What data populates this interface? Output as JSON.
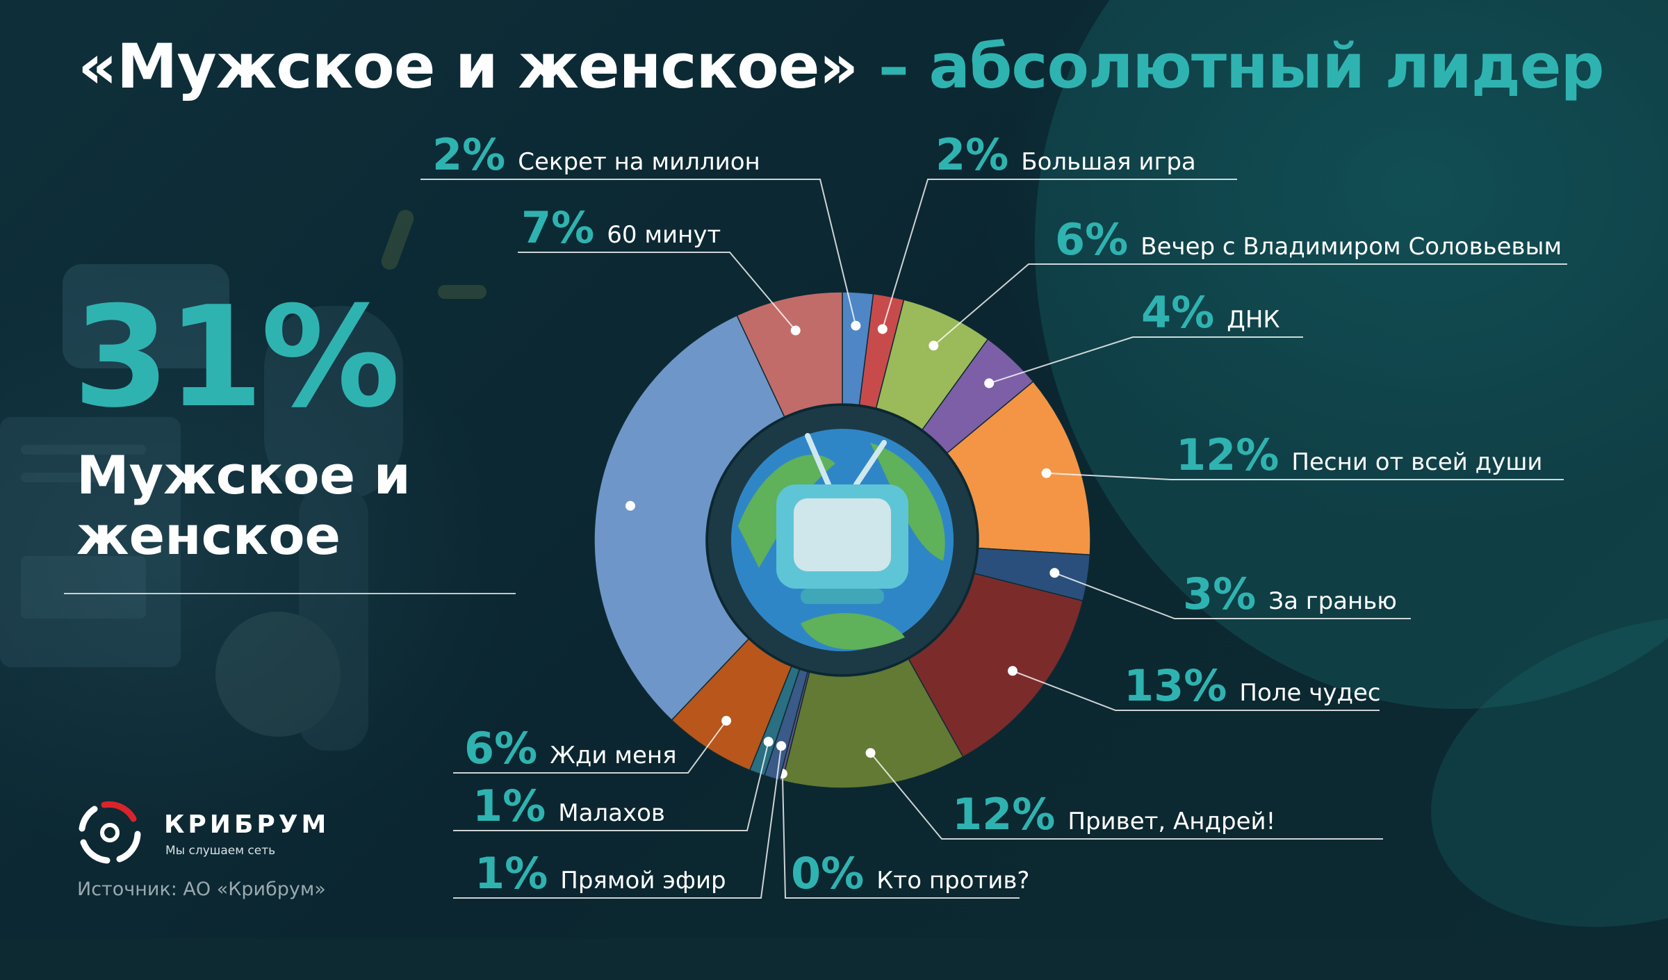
{
  "title": {
    "main": "«Мужское и женское»",
    "accent": " – абсолютный лидер"
  },
  "leader": {
    "percent": "31%",
    "name": "Мужское и женское"
  },
  "brand": {
    "name": "КРИБРУМ",
    "slogan": "Мы слушаем сеть"
  },
  "source": "Источник: АО «Крибрум»",
  "colors": {
    "accent": "#2fb3b0",
    "background": "#0d2a33"
  },
  "icons": {
    "center": "globe-tv-icon",
    "logo": "kribrum-logo-icon"
  },
  "chart_data": {
    "type": "pie",
    "donut": true,
    "start": "top, clockwise",
    "legend": "none",
    "unit": "%",
    "categories": [
      "Секрет на миллион",
      "Большая игра",
      "Вечер с Владимиром Соловьевым",
      "ДНК",
      "Песни от всей души",
      "За гранью",
      "Поле чудес",
      "Привет, Андрей!",
      "Кто против?",
      "Прямой эфир",
      "Малахов",
      "Жди меня",
      "Мужское и женское",
      "60 минут"
    ],
    "values": [
      2,
      2,
      6,
      4,
      12,
      3,
      13,
      12,
      0.2,
      1,
      1,
      6,
      31,
      7
    ],
    "data_labels": [
      "2%",
      "2%",
      "6%",
      "4%",
      "12%",
      "3%",
      "13%",
      "12%",
      "0%",
      "1%",
      "1%",
      "6%",
      "",
      "7%"
    ],
    "colors": [
      "#4e86c6",
      "#c84b4b",
      "#9bba59",
      "#7d5fa8",
      "#f39545",
      "#2b4f7c",
      "#7c2b2b",
      "#627a33",
      "#6b5487",
      "#3a5a88",
      "#2a6f82",
      "#b8561b",
      "#6f96c8",
      "#c26c6a"
    ]
  }
}
